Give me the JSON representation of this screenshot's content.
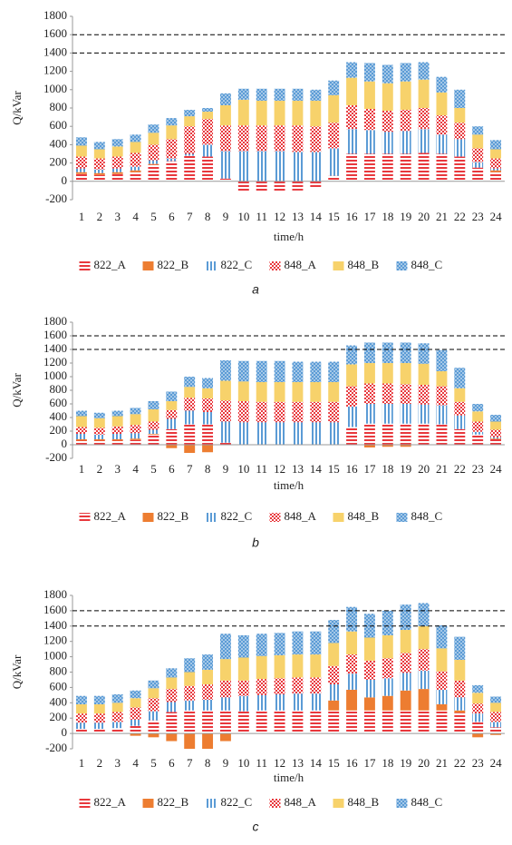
{
  "chart_data": [
    {
      "type": "bar",
      "stacked": true,
      "caption": "a",
      "xlabel": "time/h",
      "ylabel": "Q/kVar",
      "categories": [
        "1",
        "2",
        "3",
        "4",
        "5",
        "6",
        "7",
        "8",
        "9",
        "10",
        "11",
        "12",
        "13",
        "14",
        "15",
        "16",
        "17",
        "18",
        "19",
        "20",
        "21",
        "22",
        "23",
        "24"
      ],
      "ylim": [
        -200,
        1800
      ],
      "yticks": [
        -200,
        0,
        200,
        400,
        600,
        800,
        1000,
        1200,
        1400,
        1600,
        1800
      ],
      "reference_lines": [
        1400,
        1600
      ],
      "series": [
        {
          "name": "822_A",
          "color": "#e8383d",
          "pattern": "hstripes",
          "values": [
            80,
            70,
            80,
            100,
            180,
            220,
            280,
            270,
            30,
            -120,
            -110,
            -110,
            -100,
            -80,
            60,
            300,
            300,
            300,
            300,
            310,
            300,
            270,
            150,
            100
          ]
        },
        {
          "name": "822_B",
          "color": "#ed7d31",
          "pattern": "solid",
          "values": [
            20,
            20,
            20,
            20,
            10,
            0,
            0,
            0,
            0,
            0,
            0,
            0,
            0,
            0,
            0,
            0,
            0,
            0,
            0,
            0,
            0,
            0,
            0,
            20
          ]
        },
        {
          "name": "822_C",
          "color": "#5b9bd5",
          "pattern": "vstripes",
          "values": [
            40,
            40,
            40,
            40,
            40,
            30,
            20,
            130,
            300,
            330,
            330,
            330,
            320,
            320,
            300,
            270,
            260,
            240,
            250,
            260,
            210,
            190,
            60,
            20
          ]
        },
        {
          "name": "848_A",
          "color": "#e8383d",
          "pattern": "checker",
          "values": [
            130,
            120,
            130,
            150,
            170,
            210,
            300,
            280,
            280,
            280,
            280,
            280,
            290,
            280,
            280,
            260,
            230,
            230,
            230,
            230,
            210,
            180,
            150,
            110
          ]
        },
        {
          "name": "848_B",
          "color": "#f7d26b",
          "pattern": "solid",
          "values": [
            120,
            100,
            110,
            120,
            130,
            150,
            110,
            80,
            220,
            280,
            270,
            270,
            270,
            280,
            300,
            300,
            300,
            300,
            310,
            310,
            250,
            160,
            150,
            100
          ]
        },
        {
          "name": "848_C",
          "color": "#5b9bd5",
          "pattern": "dots",
          "values": [
            90,
            80,
            80,
            80,
            90,
            80,
            70,
            40,
            130,
            120,
            130,
            130,
            130,
            120,
            160,
            170,
            200,
            200,
            200,
            190,
            170,
            200,
            90,
            100
          ]
        }
      ]
    },
    {
      "type": "bar",
      "stacked": true,
      "caption": "b",
      "xlabel": "time/h",
      "ylabel": "Q/kVar",
      "categories": [
        "1",
        "2",
        "3",
        "4",
        "5",
        "6",
        "7",
        "8",
        "9",
        "10",
        "11",
        "12",
        "13",
        "14",
        "15",
        "16",
        "17",
        "18",
        "19",
        "20",
        "21",
        "22",
        "23",
        "24"
      ],
      "ylim": [
        -200,
        1800
      ],
      "yticks": [
        -200,
        0,
        200,
        400,
        600,
        800,
        1000,
        1200,
        1400,
        1600,
        1800
      ],
      "reference_lines": [
        1400,
        1600
      ],
      "series": [
        {
          "name": "822_A",
          "color": "#e8383d",
          "pattern": "hstripes",
          "values": [
            60,
            60,
            60,
            70,
            150,
            230,
            300,
            300,
            30,
            -20,
            -20,
            -20,
            -10,
            -10,
            0,
            260,
            310,
            310,
            310,
            310,
            300,
            230,
            150,
            80
          ]
        },
        {
          "name": "822_B",
          "color": "#ed7d31",
          "pattern": "solid",
          "values": [
            20,
            20,
            20,
            20,
            10,
            -50,
            -120,
            -110,
            0,
            0,
            0,
            0,
            0,
            0,
            0,
            0,
            -40,
            -30,
            -30,
            0,
            0,
            0,
            0,
            10
          ]
        },
        {
          "name": "822_C",
          "color": "#5b9bd5",
          "pattern": "vstripes",
          "values": [
            80,
            70,
            80,
            80,
            60,
            150,
            200,
            180,
            310,
            330,
            330,
            330,
            330,
            330,
            330,
            300,
            290,
            290,
            290,
            280,
            280,
            200,
            40,
            20
          ]
        },
        {
          "name": "848_A",
          "color": "#e8383d",
          "pattern": "checker",
          "values": [
            100,
            100,
            110,
            120,
            120,
            130,
            190,
            200,
            310,
            310,
            300,
            300,
            300,
            300,
            300,
            300,
            300,
            300,
            290,
            290,
            280,
            200,
            150,
            110
          ]
        },
        {
          "name": "848_B",
          "color": "#f7d26b",
          "pattern": "solid",
          "values": [
            160,
            140,
            150,
            160,
            180,
            130,
            160,
            150,
            290,
            290,
            290,
            290,
            290,
            290,
            290,
            320,
            300,
            300,
            310,
            310,
            220,
            200,
            150,
            120
          ]
        },
        {
          "name": "848_C",
          "color": "#5b9bd5",
          "pattern": "dots",
          "values": [
            80,
            80,
            80,
            90,
            120,
            140,
            150,
            150,
            300,
            300,
            310,
            310,
            300,
            300,
            300,
            280,
            300,
            300,
            300,
            300,
            310,
            300,
            110,
            100
          ]
        }
      ]
    },
    {
      "type": "bar",
      "stacked": true,
      "caption": "c",
      "xlabel": "time/h",
      "ylabel": "Q/kVar",
      "categories": [
        "1",
        "2",
        "3",
        "4",
        "5",
        "6",
        "7",
        "8",
        "9",
        "10",
        "11",
        "12",
        "13",
        "14",
        "15",
        "16",
        "17",
        "18",
        "19",
        "20",
        "21",
        "22",
        "23",
        "24"
      ],
      "ylim": [
        -200,
        1800
      ],
      "yticks": [
        -200,
        0,
        200,
        400,
        600,
        800,
        1000,
        1200,
        1400,
        1600,
        1800
      ],
      "reference_lines": [
        1400,
        1600
      ],
      "series": [
        {
          "name": "822_A",
          "color": "#e8383d",
          "pattern": "hstripes",
          "values": [
            60,
            60,
            70,
            100,
            170,
            280,
            300,
            300,
            300,
            290,
            300,
            300,
            300,
            300,
            300,
            300,
            300,
            300,
            300,
            300,
            300,
            270,
            150,
            80
          ]
        },
        {
          "name": "822_B",
          "color": "#ed7d31",
          "pattern": "solid",
          "values": [
            0,
            0,
            0,
            -30,
            -50,
            -100,
            -200,
            -200,
            -100,
            0,
            0,
            0,
            0,
            0,
            130,
            270,
            170,
            190,
            260,
            280,
            80,
            30,
            -50,
            -20
          ]
        },
        {
          "name": "822_C",
          "color": "#5b9bd5",
          "pattern": "vstripes",
          "values": [
            80,
            80,
            80,
            80,
            120,
            130,
            130,
            140,
            170,
            200,
            200,
            210,
            220,
            220,
            210,
            210,
            230,
            230,
            230,
            240,
            190,
            170,
            110,
            70
          ]
        },
        {
          "name": "848_A",
          "color": "#e8383d",
          "pattern": "checker",
          "values": [
            120,
            120,
            130,
            160,
            170,
            170,
            190,
            200,
            220,
            200,
            210,
            210,
            210,
            210,
            240,
            250,
            250,
            260,
            260,
            280,
            240,
            220,
            130,
            130
          ]
        },
        {
          "name": "848_B",
          "color": "#f7d26b",
          "pattern": "solid",
          "values": [
            120,
            120,
            120,
            120,
            130,
            150,
            180,
            190,
            280,
            300,
            300,
            300,
            300,
            300,
            300,
            300,
            300,
            300,
            300,
            300,
            300,
            270,
            140,
            120
          ]
        },
        {
          "name": "848_C",
          "color": "#5b9bd5",
          "pattern": "dots",
          "values": [
            110,
            110,
            110,
            100,
            100,
            120,
            180,
            200,
            330,
            290,
            290,
            290,
            300,
            300,
            300,
            320,
            310,
            320,
            330,
            300,
            300,
            300,
            100,
            80
          ]
        }
      ]
    }
  ]
}
